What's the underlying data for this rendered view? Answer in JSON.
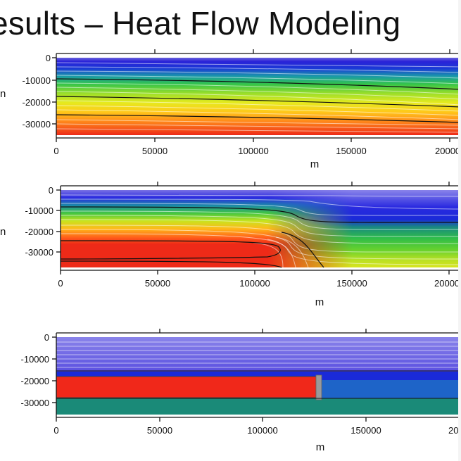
{
  "slide": {
    "title": "esults – Heat Flow Modeling"
  },
  "panels": [
    {
      "y_ticks": [
        "0",
        "-10000",
        "-20000",
        "-30000"
      ],
      "x_ticks": [
        "0",
        "50000",
        "100000",
        "150000",
        "20000"
      ],
      "x_label": "m",
      "y_label_fragment": "n"
    },
    {
      "y_ticks": [
        "0",
        "-10000",
        "-20000",
        "-30000"
      ],
      "x_ticks": [
        "0",
        "50000",
        "100000",
        "150000",
        "20000"
      ],
      "x_label": "m",
      "y_label_fragment": "n"
    },
    {
      "y_ticks": [
        "0",
        "-10000",
        "-20000",
        "-30000"
      ],
      "x_ticks": [
        "0",
        "50000",
        "100000",
        "150000",
        "20"
      ],
      "x_label": "m",
      "y_label_fragment": ""
    }
  ],
  "colors": {
    "thermal_scale": [
      "#5a4fd6",
      "#1a1ae0",
      "#1e5ad0",
      "#1aa7a0",
      "#2ec24a",
      "#7ad62a",
      "#d8e61e",
      "#ffd21a",
      "#ff9a1a",
      "#ff4a1a",
      "#e82a1a"
    ],
    "layer_purple": "#7b73e6",
    "layer_blue": "#1a2ee0",
    "layer_teal": "#1a8a78",
    "layer_red": "#f0281a"
  }
}
